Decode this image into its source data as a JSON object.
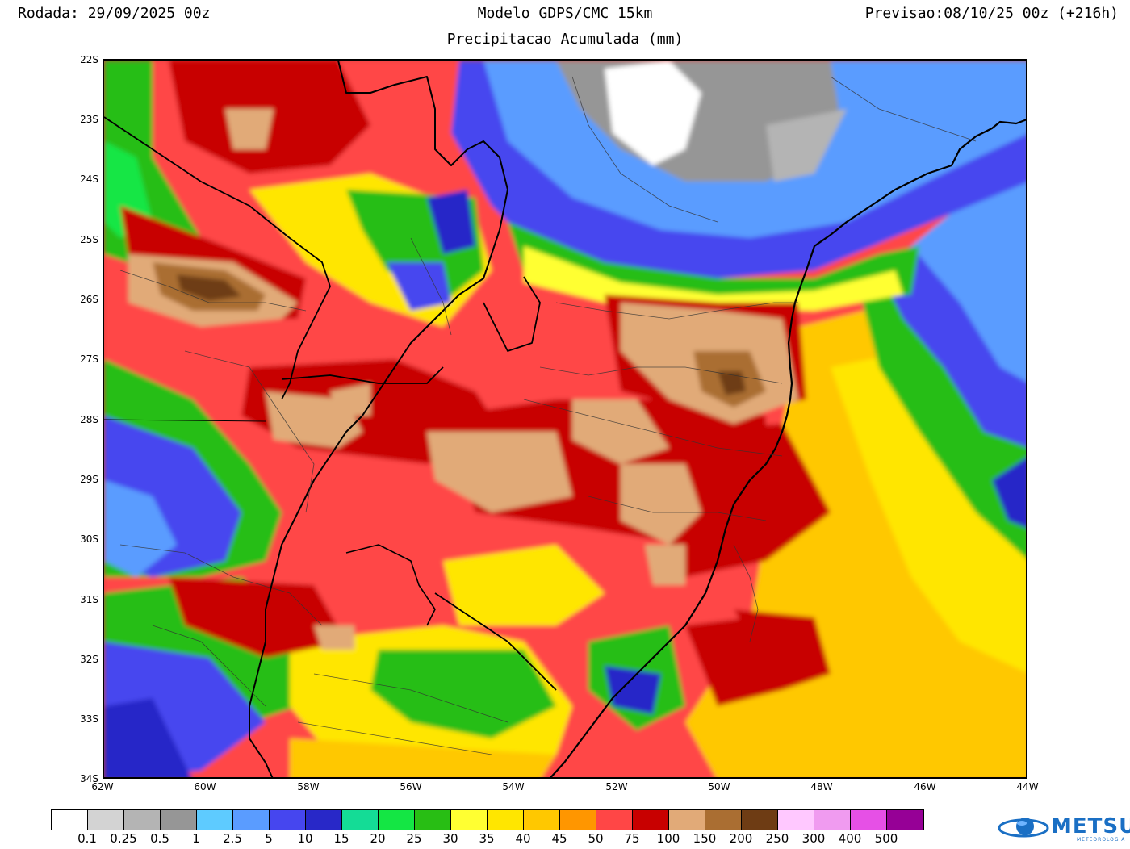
{
  "header": {
    "run_label": "Rodada: 29/09/2025 00z",
    "model_title": "Modelo GDPS/CMC 15km",
    "forecast_label": "Previsao:08/10/25 00z (+216h)",
    "subtitle": "Precipitacao Acumulada (mm)"
  },
  "map": {
    "lat_labels": [
      "22S",
      "23S",
      "24S",
      "25S",
      "26S",
      "27S",
      "28S",
      "29S",
      "30S",
      "31S",
      "32S",
      "33S",
      "34S"
    ],
    "lon_labels": [
      "62W",
      "60W",
      "58W",
      "56W",
      "54W",
      "52W",
      "50W",
      "48W",
      "46W",
      "44W"
    ]
  },
  "legend": {
    "colors": [
      "#ffffff",
      "#d3d3d3",
      "#b4b4b4",
      "#969696",
      "#5ecbff",
      "#5a9cff",
      "#4646ef",
      "#2828c8",
      "#14dc96",
      "#14e644",
      "#28be14",
      "#ffff32",
      "#ffe600",
      "#ffc800",
      "#ff9600",
      "#ff4646",
      "#c80000",
      "#e1aa78",
      "#aa6e32",
      "#6e3c14",
      "#ffc8ff",
      "#f09bf0",
      "#e650e6",
      "#960096"
    ],
    "labels": [
      "0.1",
      "0.25",
      "0.5",
      "1",
      "2.5",
      "5",
      "10",
      "15",
      "20",
      "25",
      "30",
      "35",
      "40",
      "45",
      "50",
      "75",
      "100",
      "150",
      "200",
      "250",
      "300",
      "400",
      "500"
    ]
  },
  "logo": {
    "text": "METSUL",
    "subtext": "METEOROLOGIA"
  }
}
